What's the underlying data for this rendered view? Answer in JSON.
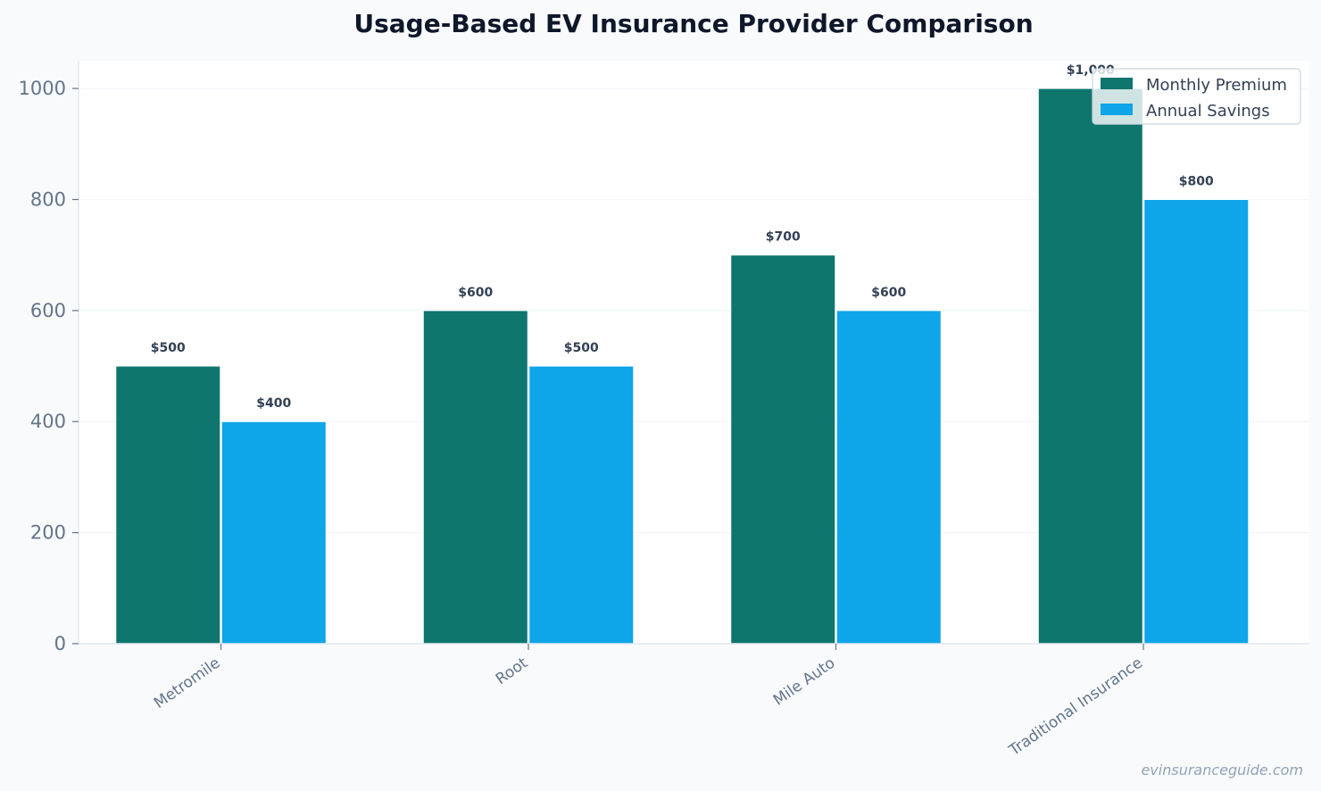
{
  "chart_data": {
    "type": "bar",
    "title": "Usage-Based EV Insurance Provider Comparison",
    "xlabel": "",
    "ylabel": "",
    "categories": [
      "Metromile",
      "Root",
      "Mile Auto",
      "Traditional Insurance"
    ],
    "series": [
      {
        "name": "Monthly Premium",
        "color": "#0f766e",
        "values": [
          500,
          600,
          700,
          1000
        ],
        "labels": [
          "$500",
          "$600",
          "$700",
          "$1,000"
        ]
      },
      {
        "name": "Annual Savings",
        "color": "#0ea5e9",
        "values": [
          400,
          500,
          600,
          800
        ],
        "labels": [
          "$400",
          "$500",
          "$600",
          "$800"
        ]
      }
    ],
    "ylim": [
      0,
      1050
    ],
    "yticks": [
      0,
      200,
      400,
      600,
      800,
      1000
    ],
    "grid": true,
    "legend_position": "top-right"
  },
  "watermark": "evinsuranceguide.com"
}
